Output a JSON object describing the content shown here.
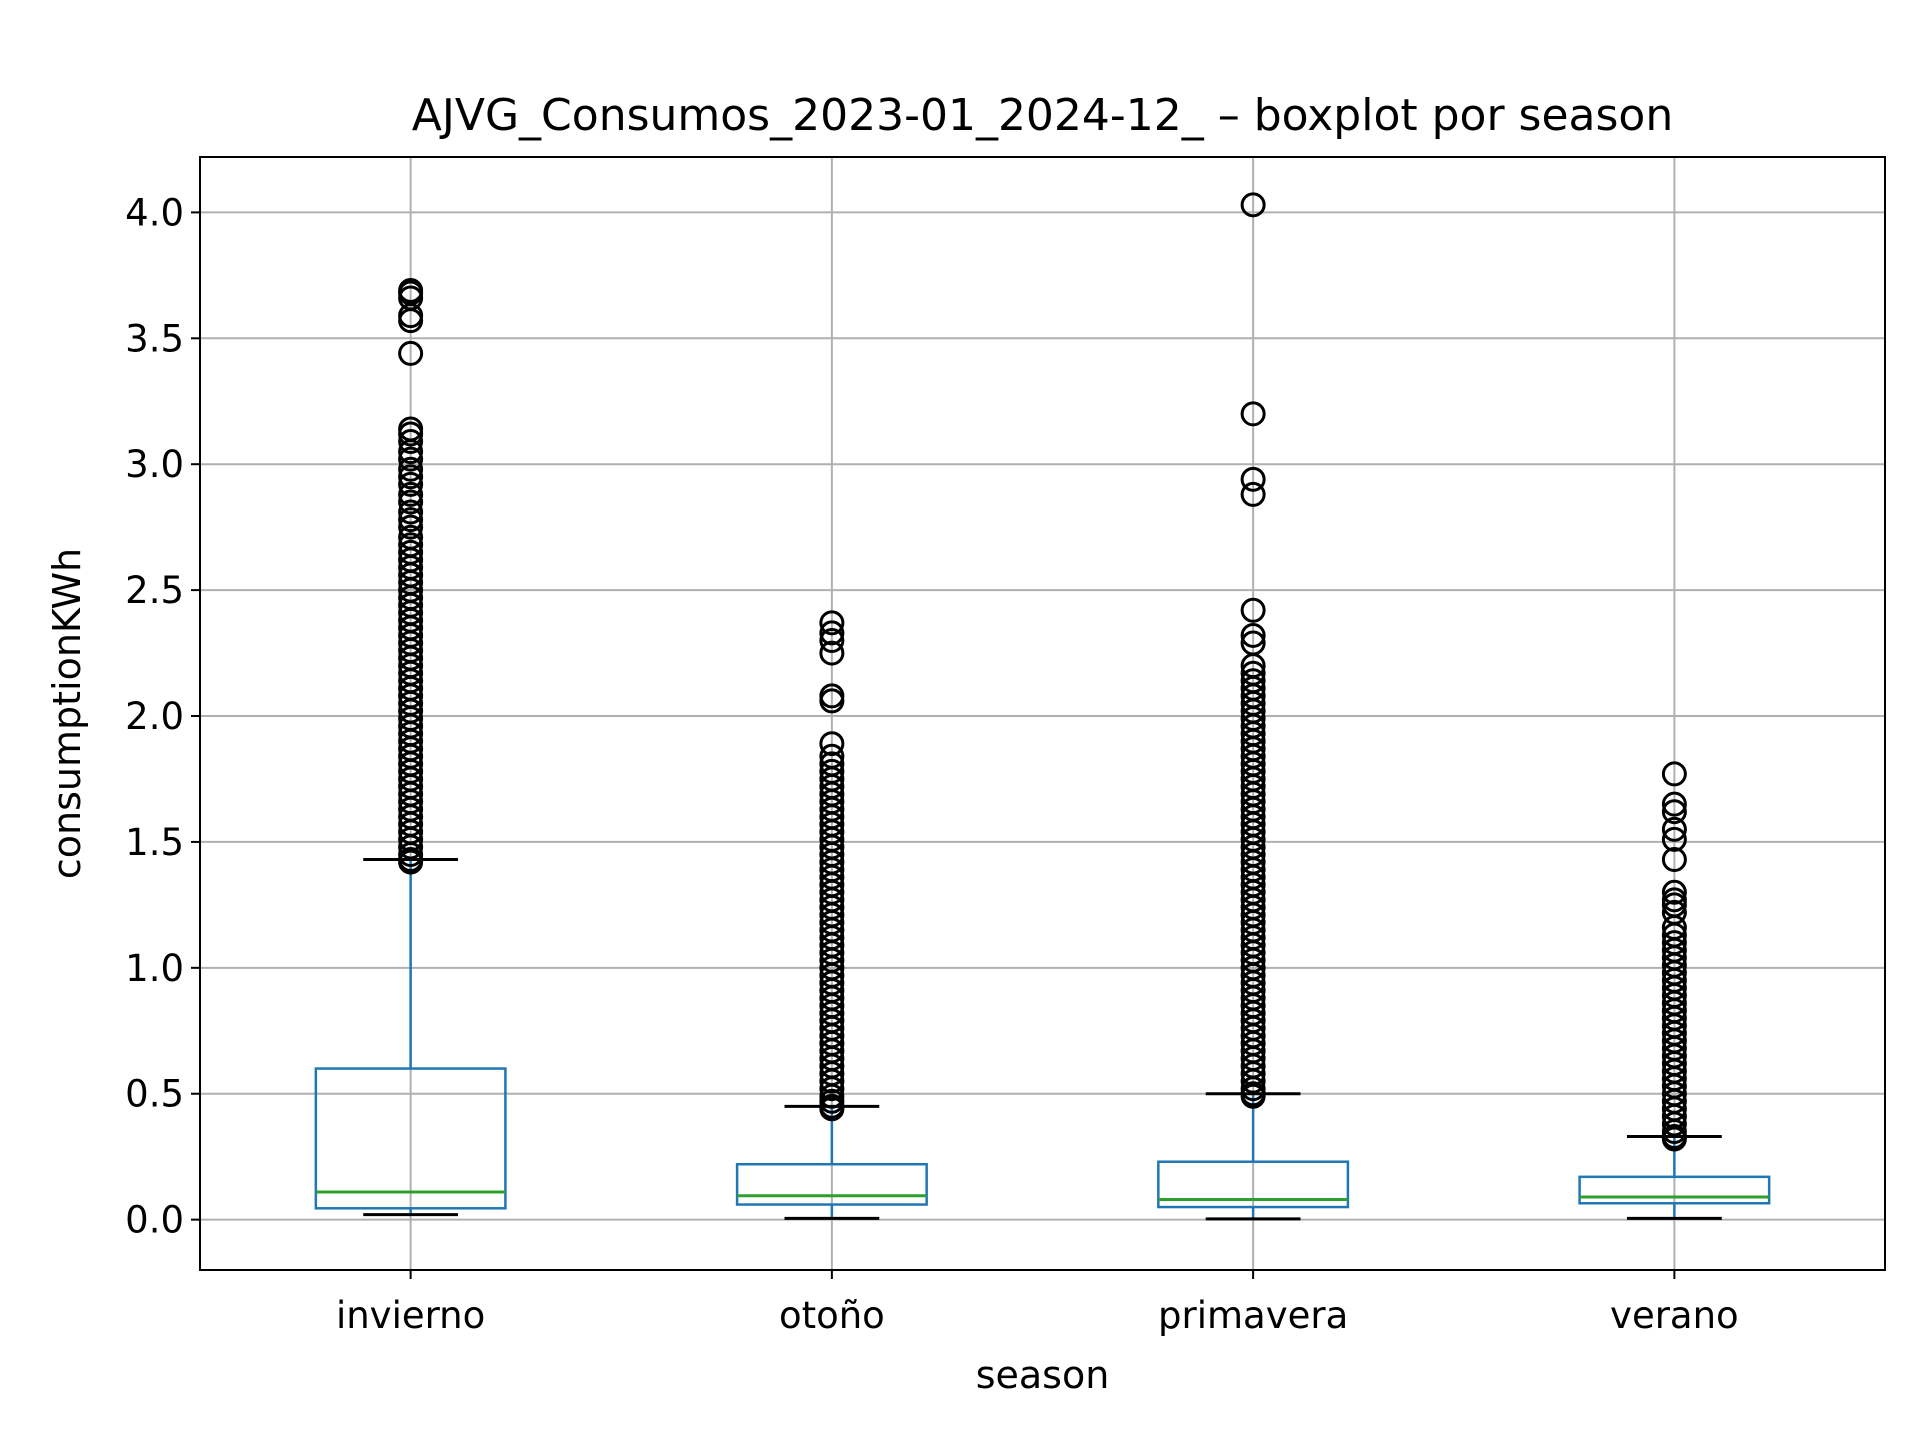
{
  "chart_data": {
    "type": "box",
    "title": "AJVG_Consumos_2023-01_2024-12_ – boxplot por season",
    "xlabel": "season",
    "ylabel": "consumptionKWh",
    "ylim": [
      -0.2,
      4.22
    ],
    "yticks": [
      0.0,
      0.5,
      1.0,
      1.5,
      2.0,
      2.5,
      3.0,
      3.5,
      4.0
    ],
    "ytick_labels": [
      "0.0",
      "0.5",
      "1.0",
      "1.5",
      "2.0",
      "2.5",
      "3.0",
      "3.5",
      "4.0"
    ],
    "grid": true,
    "colors": {
      "box": "#1f77b4",
      "median": "#2ca02c",
      "whisker_cap": "#000000",
      "flier": "#000000",
      "grid": "#b0b0b0"
    },
    "categories": [
      "invierno",
      "otoño",
      "primavera",
      "verano"
    ],
    "boxes": [
      {
        "category": "invierno",
        "whisker_low": 0.02,
        "q1": 0.045,
        "median": 0.11,
        "q3": 0.6,
        "whisker_high": 1.43,
        "outliers": [
          3.69,
          3.68,
          3.66,
          3.59,
          3.57,
          3.44,
          3.14,
          3.12,
          3.09,
          3.05,
          3.02,
          2.98,
          2.95,
          2.92,
          2.88,
          2.85,
          2.81,
          2.78,
          2.75,
          2.71,
          2.68,
          2.65,
          2.62,
          2.59,
          2.56,
          2.53,
          2.5,
          2.47,
          2.44,
          2.41,
          2.38,
          2.35,
          2.32,
          2.29,
          2.26,
          2.23,
          2.2,
          2.17,
          2.14,
          2.11,
          2.08,
          2.05,
          2.02,
          1.99,
          1.96,
          1.93,
          1.9,
          1.87,
          1.84,
          1.81,
          1.78,
          1.75,
          1.72,
          1.69,
          1.66,
          1.63,
          1.6,
          1.57,
          1.54,
          1.51,
          1.48,
          1.45,
          1.43,
          1.42
        ]
      },
      {
        "category": "otoño",
        "whisker_low": 0.005,
        "q1": 0.06,
        "median": 0.095,
        "q3": 0.22,
        "whisker_high": 0.45,
        "outliers": [
          2.37,
          2.33,
          2.3,
          2.25,
          2.08,
          2.06,
          1.89,
          1.84,
          1.81,
          1.78,
          1.75,
          1.72,
          1.69,
          1.66,
          1.63,
          1.6,
          1.57,
          1.54,
          1.51,
          1.48,
          1.45,
          1.42,
          1.39,
          1.36,
          1.33,
          1.3,
          1.27,
          1.24,
          1.21,
          1.18,
          1.15,
          1.12,
          1.09,
          1.06,
          1.03,
          1.0,
          0.97,
          0.94,
          0.91,
          0.88,
          0.85,
          0.82,
          0.79,
          0.76,
          0.73,
          0.7,
          0.67,
          0.64,
          0.61,
          0.58,
          0.55,
          0.52,
          0.49,
          0.47,
          0.45,
          0.44
        ]
      },
      {
        "category": "primavera",
        "whisker_low": 0.003,
        "q1": 0.05,
        "median": 0.08,
        "q3": 0.23,
        "whisker_high": 0.5,
        "outliers": [
          4.03,
          3.2,
          2.94,
          2.88,
          2.42,
          2.32,
          2.29,
          2.2,
          2.17,
          2.14,
          2.11,
          2.08,
          2.05,
          2.02,
          1.99,
          1.96,
          1.93,
          1.9,
          1.87,
          1.84,
          1.81,
          1.78,
          1.75,
          1.72,
          1.69,
          1.66,
          1.63,
          1.6,
          1.57,
          1.54,
          1.51,
          1.48,
          1.45,
          1.42,
          1.39,
          1.36,
          1.33,
          1.3,
          1.27,
          1.24,
          1.21,
          1.18,
          1.15,
          1.12,
          1.09,
          1.06,
          1.03,
          1.0,
          0.97,
          0.94,
          0.91,
          0.88,
          0.85,
          0.82,
          0.79,
          0.76,
          0.73,
          0.7,
          0.67,
          0.64,
          0.61,
          0.58,
          0.55,
          0.52,
          0.5,
          0.49
        ]
      },
      {
        "category": "verano",
        "whisker_low": 0.005,
        "q1": 0.065,
        "median": 0.09,
        "q3": 0.17,
        "whisker_high": 0.33,
        "outliers": [
          1.77,
          1.65,
          1.62,
          1.55,
          1.51,
          1.43,
          1.3,
          1.27,
          1.25,
          1.22,
          1.16,
          1.13,
          1.1,
          1.07,
          1.04,
          1.01,
          0.98,
          0.95,
          0.92,
          0.89,
          0.86,
          0.83,
          0.8,
          0.77,
          0.74,
          0.71,
          0.68,
          0.65,
          0.62,
          0.59,
          0.56,
          0.53,
          0.5,
          0.47,
          0.44,
          0.41,
          0.38,
          0.35,
          0.33,
          0.32
        ]
      }
    ]
  }
}
